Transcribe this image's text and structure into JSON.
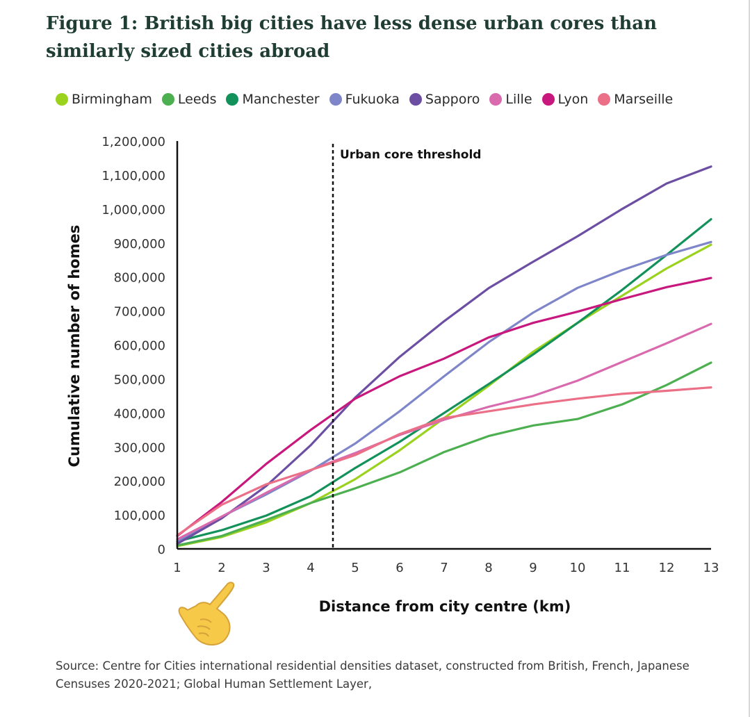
{
  "title": "Figure 1: British big cities have less dense urban cores than similarly sized cities abroad",
  "source": "Source: Centre for Cities international residential densities dataset, constructed from British, French, Japanese Censuses 2020-2021; Global Human Settlement Layer,",
  "pointer_icon": "pointing-hand-emoji",
  "chart_data": {
    "type": "line",
    "xlabel": "Distance from city centre (km)",
    "ylabel": "Cumulative number of homes",
    "x": [
      1,
      2,
      3,
      4,
      5,
      6,
      7,
      8,
      9,
      10,
      11,
      12,
      13
    ],
    "xlim": [
      1,
      13
    ],
    "ylim": [
      0,
      1200000
    ],
    "yticks": [
      0,
      100000,
      200000,
      300000,
      400000,
      500000,
      600000,
      700000,
      800000,
      900000,
      1000000,
      1100000,
      1200000
    ],
    "ytick_labels": [
      "0",
      "100,000",
      "200,000",
      "300,000",
      "400,000",
      "500,000",
      "600,000",
      "700,000",
      "800,000",
      "900,000",
      "1,000,000",
      "1,100,000",
      "1,200,000"
    ],
    "xtick_labels": [
      "1",
      "2",
      "3",
      "4",
      "5",
      "6",
      "7",
      "8",
      "9",
      "10",
      "11",
      "12",
      "13"
    ],
    "grid": false,
    "legend_position": "top",
    "annotation": {
      "label": "Urban core threshold",
      "x": 4.5
    },
    "series": [
      {
        "name": "Birmingham",
        "color": "#9ad21e",
        "values": [
          8000,
          35000,
          78000,
          135000,
          205000,
          290000,
          385000,
          480000,
          580000,
          665000,
          745000,
          825000,
          895000
        ]
      },
      {
        "name": "Leeds",
        "color": "#4caf50",
        "values": [
          10000,
          38000,
          85000,
          135000,
          178000,
          225000,
          285000,
          332000,
          363000,
          382000,
          425000,
          482000,
          548000
        ]
      },
      {
        "name": "Manchester",
        "color": "#12925a",
        "values": [
          22000,
          55000,
          98000,
          155000,
          238000,
          315000,
          400000,
          485000,
          572000,
          665000,
          762000,
          865000,
          970000
        ]
      },
      {
        "name": "Fukuoka",
        "color": "#7e86c9",
        "values": [
          20000,
          95000,
          160000,
          230000,
          310000,
          405000,
          508000,
          608000,
          695000,
          768000,
          820000,
          865000,
          903000
        ]
      },
      {
        "name": "Sapporo",
        "color": "#6c4fa3",
        "values": [
          15000,
          90000,
          185000,
          305000,
          445000,
          565000,
          670000,
          767000,
          845000,
          920000,
          1000000,
          1075000,
          1125000
        ]
      },
      {
        "name": "Lille",
        "color": "#d96aae",
        "values": [
          28000,
          95000,
          165000,
          232000,
          282000,
          335000,
          380000,
          418000,
          450000,
          495000,
          550000,
          605000,
          662000
        ]
      },
      {
        "name": "Lyon",
        "color": "#c8187e",
        "values": [
          38000,
          138000,
          250000,
          350000,
          442000,
          508000,
          560000,
          622000,
          665000,
          698000,
          735000,
          770000,
          797000
        ]
      },
      {
        "name": "Marseille",
        "color": "#ea6f87",
        "values": [
          40000,
          130000,
          190000,
          232000,
          276000,
          338000,
          385000,
          405000,
          425000,
          442000,
          456000,
          465000,
          475000
        ]
      }
    ]
  }
}
